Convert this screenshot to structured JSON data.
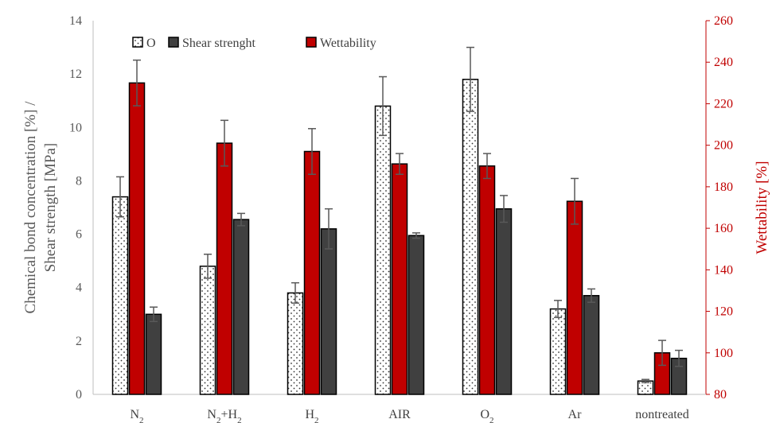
{
  "chart_data": {
    "type": "bar",
    "categories": [
      "N2",
      "N2+H2",
      "H2",
      "AIR",
      "O2",
      "Ar",
      "nontreated"
    ],
    "category_labels": [
      {
        "base": "N",
        "sub": "2",
        "rest": "",
        "sub2": ""
      },
      {
        "base": "N",
        "sub": "2",
        "rest": "+H",
        "sub2": "2"
      },
      {
        "base": "H",
        "sub": "2",
        "rest": "",
        "sub2": ""
      },
      {
        "base": "AIR",
        "sub": "",
        "rest": "",
        "sub2": ""
      },
      {
        "base": "O",
        "sub": "2",
        "rest": "",
        "sub2": ""
      },
      {
        "base": "Ar",
        "sub": "",
        "rest": "",
        "sub2": ""
      },
      {
        "base": "nontreated",
        "sub": "",
        "rest": "",
        "sub2": ""
      }
    ],
    "series": [
      {
        "name": "O",
        "axis": "left",
        "pattern": "dotted",
        "color": "#ffffff",
        "values": [
          7.4,
          4.8,
          3.8,
          10.8,
          11.8,
          3.2,
          0.5
        ],
        "errors": [
          0.75,
          0.45,
          0.38,
          1.1,
          1.2,
          0.32,
          0.06
        ]
      },
      {
        "name": "Wettability",
        "axis": "right",
        "pattern": "solid",
        "color": "#c00000",
        "values": [
          230,
          201,
          197,
          191,
          190,
          173,
          100
        ],
        "errors": [
          11,
          11,
          11,
          5,
          6,
          11,
          6
        ]
      },
      {
        "name": "Shear strenght",
        "axis": "left",
        "pattern": "solid",
        "color": "#404040",
        "values": [
          3.0,
          6.55,
          6.2,
          5.95,
          6.95,
          3.7,
          1.35
        ],
        "errors": [
          0.27,
          0.23,
          0.75,
          0.1,
          0.5,
          0.25,
          0.3
        ]
      }
    ],
    "legend": [
      {
        "name": "O",
        "swatch": "dotted"
      },
      {
        "name": "Shear strenght",
        "swatch": "#404040"
      },
      {
        "name": "Wettability",
        "swatch": "#c00000"
      }
    ],
    "legend_position": "top-left",
    "ylabel": "Chemical bond concentration [%] / Shear strength [MPa]",
    "ylabel_lines": [
      "Chemical bond concentration [%] /",
      "Shear strength [MPa]"
    ],
    "y2label": "Wettability [%]",
    "ylim": [
      0,
      14
    ],
    "yticks": [
      "0",
      "2",
      "4",
      "6",
      "8",
      "10",
      "12",
      "14"
    ],
    "y2lim": [
      80,
      260
    ],
    "y2ticks": [
      "80",
      "100",
      "120",
      "140",
      "160",
      "180",
      "200",
      "220",
      "240",
      "260"
    ],
    "grid": false,
    "colors": {
      "left_axis": "#595959",
      "right_axis": "#c00000",
      "wettability": "#c00000",
      "shear": "#404040"
    }
  }
}
